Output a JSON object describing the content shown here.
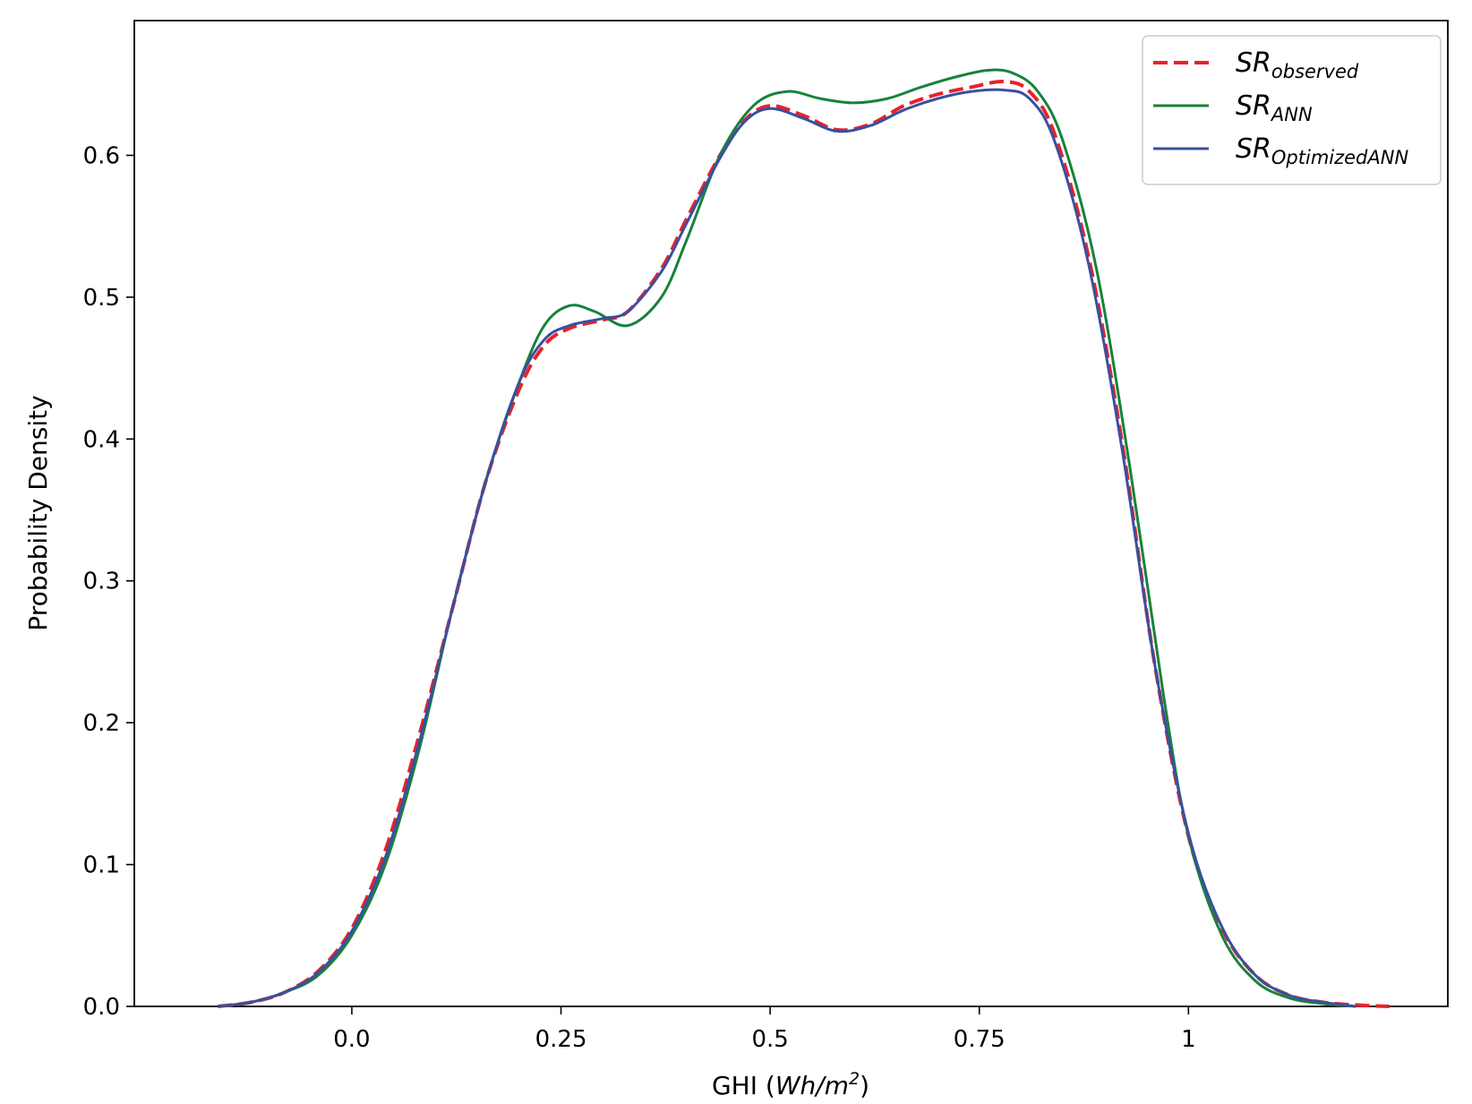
{
  "chart_data": {
    "type": "line",
    "title": "",
    "xlabel": "GHI (",
    "xlabel_unit": "Wh/m",
    "xlabel_sup": "2",
    "xlabel_close": ")",
    "ylabel": "Probability Density",
    "xlim": [
      -0.26,
      1.31
    ],
    "ylim": [
      0.0,
      0.695
    ],
    "grid": false,
    "legend_position": "top-right",
    "xticks": [
      {
        "value": 0.0,
        "label": "0.0"
      },
      {
        "value": 0.25,
        "label": "0.25"
      },
      {
        "value": 0.5,
        "label": "0.5"
      },
      {
        "value": 0.75,
        "label": "0.75"
      },
      {
        "value": 1.0,
        "label": "1"
      }
    ],
    "yticks": [
      {
        "value": 0.0,
        "label": "0.0"
      },
      {
        "value": 0.1,
        "label": "0.1"
      },
      {
        "value": 0.2,
        "label": "0.2"
      },
      {
        "value": 0.3,
        "label": "0.3"
      },
      {
        "value": 0.4,
        "label": "0.4"
      },
      {
        "value": 0.5,
        "label": "0.5"
      },
      {
        "value": 0.6,
        "label": "0.6"
      }
    ],
    "series": [
      {
        "name": "SR",
        "name_sub": "observed",
        "color": "#e8222a",
        "dash": true,
        "x": [
          -0.16,
          -0.12,
          -0.08,
          -0.04,
          0.0,
          0.04,
          0.08,
          0.12,
          0.16,
          0.2,
          0.23,
          0.26,
          0.3,
          0.33,
          0.37,
          0.4,
          0.44,
          0.47,
          0.5,
          0.54,
          0.58,
          0.62,
          0.66,
          0.7,
          0.74,
          0.78,
          0.81,
          0.84,
          0.88,
          0.92,
          0.96,
          1.0,
          1.04,
          1.08,
          1.12,
          1.16,
          1.2,
          1.24
        ],
        "y": [
          0.0,
          0.003,
          0.01,
          0.025,
          0.055,
          0.11,
          0.19,
          0.28,
          0.37,
          0.435,
          0.466,
          0.478,
          0.484,
          0.49,
          0.52,
          0.555,
          0.6,
          0.625,
          0.635,
          0.628,
          0.618,
          0.622,
          0.635,
          0.643,
          0.648,
          0.652,
          0.645,
          0.615,
          0.53,
          0.4,
          0.24,
          0.12,
          0.055,
          0.022,
          0.008,
          0.003,
          0.001,
          0.0
        ]
      },
      {
        "name": "SR",
        "name_sub": "ANN",
        "color": "#17823b",
        "dash": false,
        "x": [
          -0.16,
          -0.12,
          -0.08,
          -0.04,
          0.0,
          0.04,
          0.08,
          0.12,
          0.16,
          0.2,
          0.23,
          0.26,
          0.29,
          0.33,
          0.37,
          0.4,
          0.44,
          0.48,
          0.52,
          0.56,
          0.6,
          0.64,
          0.68,
          0.72,
          0.76,
          0.79,
          0.82,
          0.85,
          0.89,
          0.93,
          0.97,
          1.0,
          1.04,
          1.08,
          1.12,
          1.16,
          1.2
        ],
        "y": [
          0.0,
          0.003,
          0.01,
          0.022,
          0.05,
          0.1,
          0.18,
          0.28,
          0.37,
          0.44,
          0.48,
          0.494,
          0.49,
          0.48,
          0.5,
          0.54,
          0.6,
          0.635,
          0.645,
          0.64,
          0.637,
          0.64,
          0.648,
          0.655,
          0.66,
          0.658,
          0.645,
          0.61,
          0.52,
          0.38,
          0.22,
          0.12,
          0.05,
          0.018,
          0.006,
          0.002,
          0.0
        ]
      },
      {
        "name": "SR",
        "name_sub": "OptimizedANN",
        "color": "#3a4fa0",
        "dash": false,
        "x": [
          -0.16,
          -0.12,
          -0.08,
          -0.04,
          0.0,
          0.04,
          0.08,
          0.12,
          0.16,
          0.2,
          0.23,
          0.26,
          0.3,
          0.33,
          0.37,
          0.4,
          0.44,
          0.47,
          0.5,
          0.54,
          0.58,
          0.62,
          0.66,
          0.7,
          0.74,
          0.78,
          0.81,
          0.84,
          0.88,
          0.92,
          0.96,
          1.0,
          1.04,
          1.08,
          1.12,
          1.16,
          1.2
        ],
        "y": [
          0.0,
          0.003,
          0.01,
          0.024,
          0.053,
          0.105,
          0.185,
          0.28,
          0.37,
          0.44,
          0.47,
          0.48,
          0.485,
          0.49,
          0.518,
          0.552,
          0.598,
          0.624,
          0.633,
          0.626,
          0.617,
          0.621,
          0.632,
          0.64,
          0.645,
          0.646,
          0.64,
          0.61,
          0.525,
          0.395,
          0.24,
          0.122,
          0.056,
          0.022,
          0.008,
          0.003,
          0.0
        ]
      }
    ]
  }
}
